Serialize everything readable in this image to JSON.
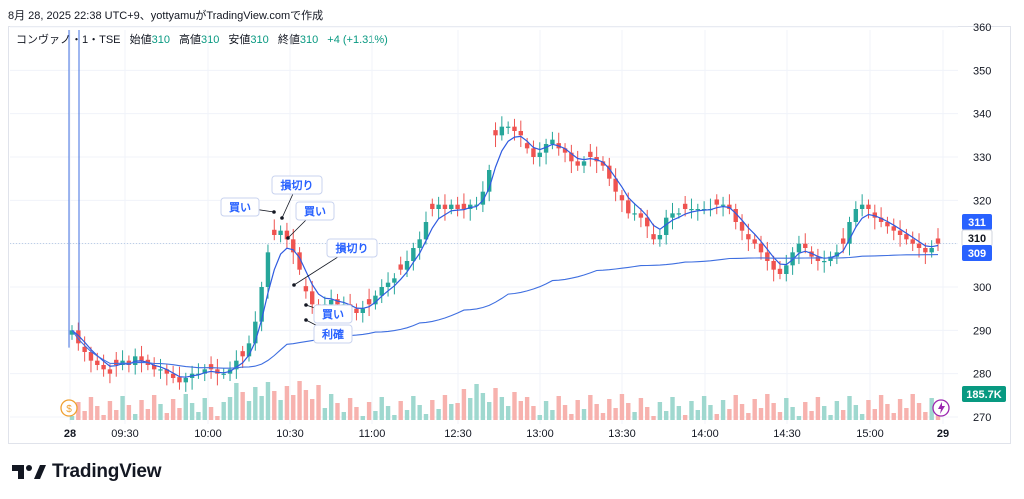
{
  "header": {
    "text": "8月 28, 2025 22:38 UTC+9、yottyamuがTradingView.comで作成"
  },
  "legend": {
    "symbol": "コンヴァノ・1・TSE",
    "open_label": "始値",
    "open": "310",
    "high_label": "高値",
    "high": "310",
    "low_label": "安値",
    "low": "310",
    "close_label": "終値",
    "close": "310",
    "change": "+4 (+1.31%)"
  },
  "branding": {
    "name": "TradingView"
  },
  "colors": {
    "up": "#26a69a",
    "down": "#ef5350",
    "vwap": "#3f6fe0",
    "ema": "#2f5be0",
    "price_tag": "#2962ff",
    "volume_tag": "#089981"
  },
  "chart_data": {
    "type": "candlestick",
    "title": "",
    "y_ticks": [
      270,
      280,
      290,
      300,
      310,
      320,
      330,
      340,
      350,
      360
    ],
    "ylim": [
      267,
      363
    ],
    "x_ticks": [
      "28",
      "09:30",
      "10:00",
      "10:30",
      "11:00",
      "12:30",
      "13:00",
      "13:30",
      "14:00",
      "14:30",
      "15:00",
      "29"
    ],
    "price_labels": {
      "upper": "311",
      "last": "310",
      "lower": "309"
    },
    "volume_label": "185.7K",
    "series": [
      {
        "name": "price",
        "close": [
          290,
          287,
          285,
          283,
          282,
          281,
          280,
          282,
          283,
          282,
          284,
          283,
          282,
          281,
          281,
          280,
          279,
          278,
          279,
          280,
          280,
          281,
          281,
          280,
          280,
          281,
          283,
          284,
          287,
          292,
          300,
          308,
          312,
          313,
          311,
          308,
          304,
          299,
          296,
          295,
          296,
          297,
          296,
          296,
          295,
          294,
          295,
          296,
          298,
          300,
          301,
          302,
          304,
          306,
          309,
          311,
          315,
          318,
          319,
          318,
          319,
          318,
          318,
          319,
          319,
          322,
          327,
          335,
          337,
          337,
          336,
          335,
          332,
          330,
          331,
          333,
          334,
          332,
          331,
          329,
          328,
          329,
          330,
          329,
          328,
          325,
          322,
          320,
          317,
          317,
          316,
          314,
          311,
          312,
          316,
          317,
          317,
          318,
          318,
          318,
          318,
          318,
          319,
          319,
          318,
          315,
          313,
          311,
          310,
          308,
          306,
          304,
          303,
          305,
          308,
          310,
          309,
          307,
          306,
          306,
          307,
          308,
          310,
          315,
          318,
          319,
          318,
          316,
          315,
          314,
          313,
          312,
          311,
          310,
          309,
          308,
          309,
          310
        ]
      },
      {
        "name": "",
        "values": [
          0.3,
          0.65,
          0.9,
          1.1,
          1.25,
          1.35,
          1.45,
          1.55,
          1.65,
          1.75,
          1.9,
          2.1,
          2.5,
          3.2,
          4.8,
          7.1,
          9.0,
          10.2,
          11.0,
          11.4,
          11.6
        ]
      }
    ],
    "annotations": [
      "買い",
      "損切り",
      "買い",
      "損切り",
      "買い",
      "利確"
    ]
  }
}
